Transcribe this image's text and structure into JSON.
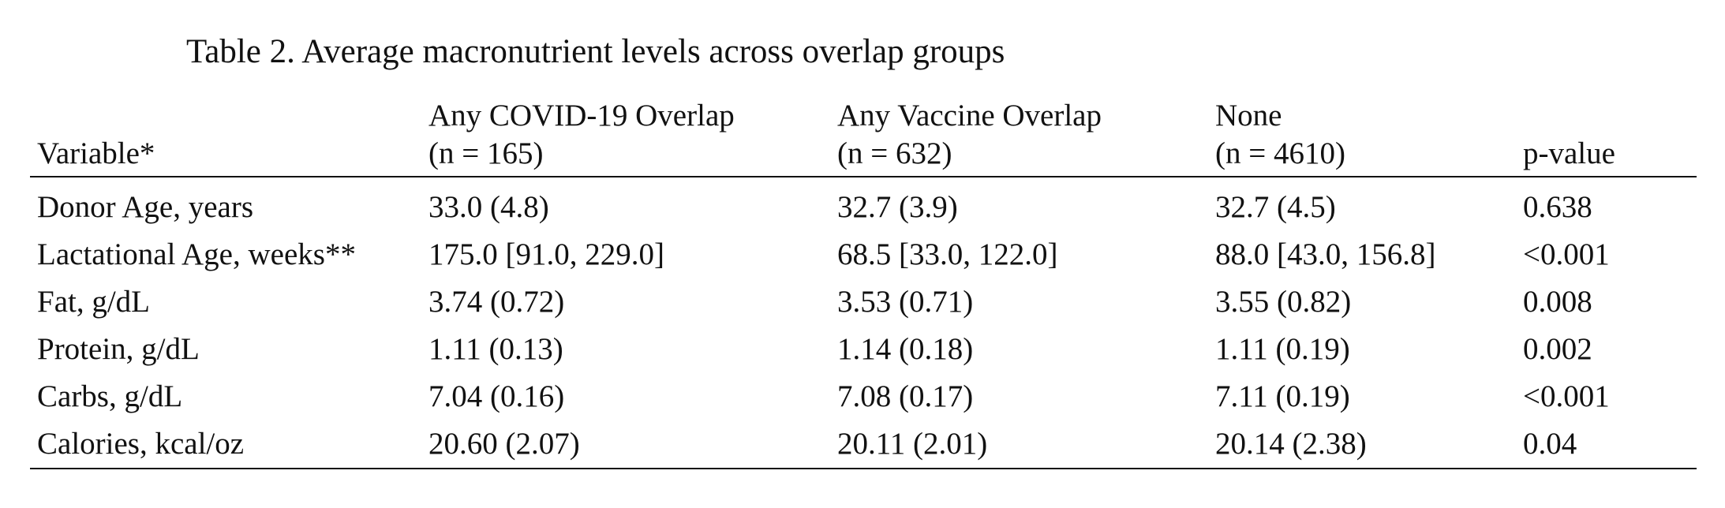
{
  "caption": "Table 2. Average macronutrient levels across overlap groups",
  "table": {
    "headers": [
      {
        "lines": [
          "Variable*"
        ]
      },
      {
        "lines": [
          "Any COVID-19 Overlap",
          "(n = 165)"
        ]
      },
      {
        "lines": [
          "Any Vaccine Overlap",
          "(n = 632)"
        ]
      },
      {
        "lines": [
          "None",
          "(n = 4610)"
        ]
      },
      {
        "lines": [
          "p-value"
        ]
      }
    ],
    "rows": [
      [
        "Donor Age, years",
        "33.0 (4.8)",
        "32.7 (3.9)",
        "32.7 (4.5)",
        "0.638"
      ],
      [
        "Lactational Age, weeks**",
        "175.0 [91.0, 229.0]",
        "68.5 [33.0, 122.0]",
        "88.0 [43.0, 156.8]",
        "<0.001"
      ],
      [
        "Fat, g/dL",
        "3.74 (0.72)",
        "3.53 (0.71)",
        "3.55 (0.82)",
        "0.008"
      ],
      [
        "Protein, g/dL",
        "1.11 (0.13)",
        "1.14 (0.18)",
        "1.11 (0.19)",
        "0.002"
      ],
      [
        "Carbs, g/dL",
        "7.04 (0.16)",
        "7.08 (0.17)",
        "7.11 (0.19)",
        "<0.001"
      ],
      [
        "Calories, kcal/oz",
        "20.60 (2.07)",
        "20.11 (2.01)",
        "20.14 (2.38)",
        "0.04"
      ]
    ]
  }
}
